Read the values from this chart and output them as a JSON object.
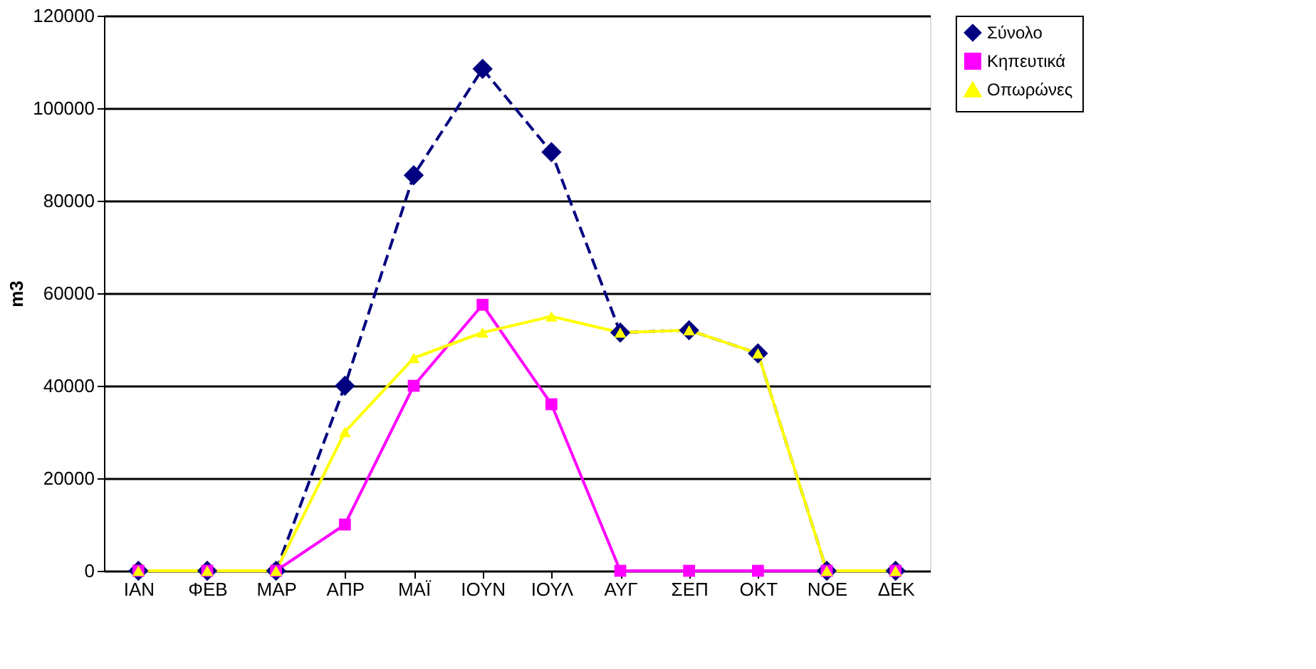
{
  "chart_data": {
    "type": "line",
    "ylabel": "m3",
    "categories": [
      "ΙΑΝ",
      "ΦΕΒ",
      "ΜΑΡ",
      "ΑΠΡ",
      "ΜΑΪ",
      "ΙΟΥΝ",
      "ΙΟΥΛ",
      "ΑΥΓ",
      "ΣΕΠ",
      "ΟΚΤ",
      "ΝΟΕ",
      "ΔΕΚ"
    ],
    "series": [
      {
        "name": "Σύνολο",
        "color": "#000080",
        "marker": "diamond",
        "line_style": "dashed",
        "values": [
          0,
          0,
          0,
          40000,
          85500,
          108500,
          90500,
          51500,
          52000,
          47000,
          0,
          0
        ]
      },
      {
        "name": "Κηπευτικά",
        "color": "#ff00ff",
        "marker": "square",
        "line_style": "solid",
        "values": [
          0,
          0,
          0,
          10000,
          40000,
          57500,
          36000,
          0,
          0,
          0,
          0,
          0
        ]
      },
      {
        "name": "Οπωρώνες",
        "color": "#ffff00",
        "marker": "triangle",
        "line_style": "solid",
        "values": [
          0,
          0,
          0,
          30000,
          46000,
          51500,
          55000,
          51500,
          52000,
          47000,
          0,
          0
        ]
      }
    ],
    "ylim": [
      0,
      120000
    ],
    "yticks": [
      0,
      20000,
      40000,
      60000,
      80000,
      100000,
      120000
    ],
    "grid": "y",
    "legend": "right"
  }
}
